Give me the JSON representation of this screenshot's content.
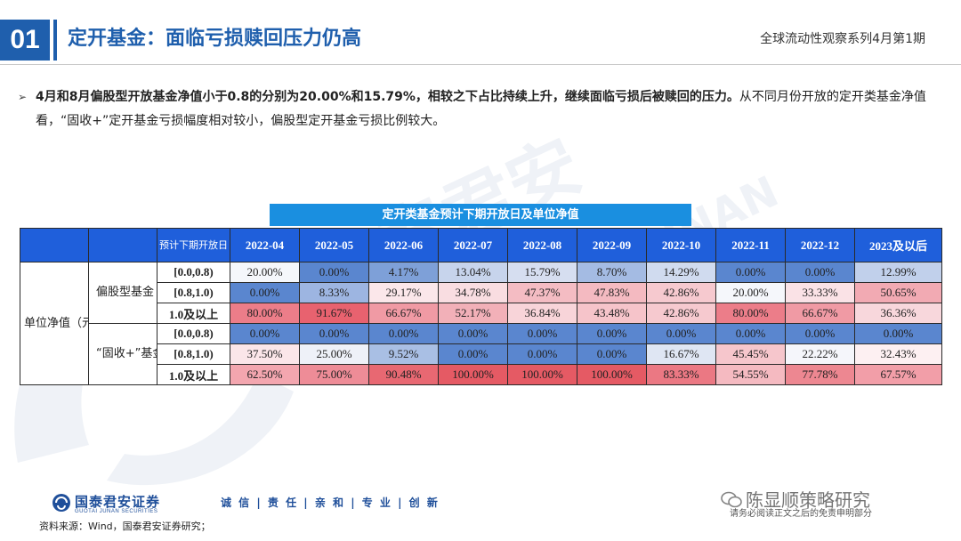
{
  "header": {
    "section_number": "01",
    "title": "定开基金：面临亏损赎回压力仍高",
    "series": "全球流动性观察系列4月第1期"
  },
  "bullet": {
    "bold_text": "4月和8月偏股型开放基金净值小于0.8的分别为20.00%和15.79%，相较之下占比持续上升，继续面临亏损后被赎回的压力。",
    "normal_text": "从不同月份开放的定开类基金净值看，“固收+”定开基金亏损幅度相对较小，偏股型定开基金亏损比例较大。"
  },
  "table": {
    "title": "定开类基金预计下期开放日及单位净值",
    "header_label": "预计下期开放日",
    "columns": [
      "2022-04",
      "2022-05",
      "2022-06",
      "2022-07",
      "2022-08",
      "2022-09",
      "2022-10",
      "2022-11",
      "2022-12",
      "2023及以后"
    ],
    "row_group_label": "单位净值（元）",
    "groups": [
      {
        "name": "偏股型基金",
        "rows": [
          {
            "range": "[0.0,0.8)",
            "values": [
              "20.00%",
              "0.00%",
              "4.17%",
              "13.04%",
              "15.79%",
              "8.70%",
              "14.29%",
              "0.00%",
              "0.00%",
              "12.99%"
            ],
            "colors": [
              "#f5f7fb",
              "#5a86cf",
              "#7ea0d8",
              "#c7d4ec",
              "#d6def0",
              "#a4bbe3",
              "#d0dbef",
              "#5a86cf",
              "#5a86cf",
              "#c1d0eb"
            ]
          },
          {
            "range": "[0.8,1.0)",
            "values": [
              "0.00%",
              "8.33%",
              "29.17%",
              "34.78%",
              "47.37%",
              "47.83%",
              "42.86%",
              "20.00%",
              "33.33%",
              "50.65%"
            ],
            "colors": [
              "#5a86cf",
              "#9db5e1",
              "#fbe7ea",
              "#f9dde1",
              "#f4bcc3",
              "#f4bac1",
              "#f6c9cf",
              "#f5f7fb",
              "#fae2e6",
              "#f2aab3"
            ]
          },
          {
            "range": "1.0及以上",
            "values": [
              "80.00%",
              "91.67%",
              "66.67%",
              "52.17%",
              "36.84%",
              "43.48%",
              "42.86%",
              "80.00%",
              "66.67%",
              "36.36%"
            ],
            "colors": [
              "#ec7d89",
              "#e8626f",
              "#f09aa4",
              "#f2b0b8",
              "#f8d4d9",
              "#f6c4ca",
              "#f6c9cf",
              "#ec7d89",
              "#f09aa4",
              "#f8d7dc"
            ]
          }
        ]
      },
      {
        "name": "“固收+”基金",
        "rows": [
          {
            "range": "[0.0,0.8)",
            "values": [
              "0.00%",
              "0.00%",
              "0.00%",
              "0.00%",
              "0.00%",
              "0.00%",
              "0.00%",
              "0.00%",
              "0.00%",
              "0.00%"
            ],
            "colors": [
              "#5a86cf",
              "#5a86cf",
              "#5a86cf",
              "#5a86cf",
              "#5a86cf",
              "#5a86cf",
              "#5a86cf",
              "#5a86cf",
              "#5a86cf",
              "#5a86cf"
            ]
          },
          {
            "range": "[0.8,1.0)",
            "values": [
              "37.50%",
              "25.00%",
              "9.52%",
              "0.00%",
              "0.00%",
              "0.00%",
              "16.67%",
              "45.45%",
              "22.22%",
              "32.43%"
            ],
            "colors": [
              "#fbe6e9",
              "#eef1f8",
              "#a9bfe4",
              "#5a86cf",
              "#5a86cf",
              "#5a86cf",
              "#dfe6f3",
              "#f6c6cc",
              "#f5f6fb",
              "#fdf0f2"
            ]
          },
          {
            "range": "1.0及以上",
            "values": [
              "62.50%",
              "75.00%",
              "90.48%",
              "100.00%",
              "100.00%",
              "100.00%",
              "83.33%",
              "54.55%",
              "77.78%",
              "67.57%"
            ],
            "colors": [
              "#f3a6af",
              "#ee8c97",
              "#e86872",
              "#e55a64",
              "#e55a64",
              "#e55a64",
              "#eb7883",
              "#f5bac1",
              "#ed8791",
              "#f29ea8"
            ]
          }
        ]
      }
    ]
  },
  "footer": {
    "logo_cn": "国泰君安证券",
    "logo_en": "GUOTAI JUNAN SECURITIES",
    "slogan": "诚 信 | 责 任 | 亲 和 | 专 业 | 创 新",
    "source": "资料来源：Wind，国泰君安证券研究；",
    "wechat_account": "陈显顺策略研究",
    "wechat_sub": "请务必阅读正文之后的免责申明部分"
  },
  "colors": {
    "brand_blue": "#1f5fad",
    "table_header": "#1f5fdb",
    "title_bar": "#1a8fe0"
  }
}
